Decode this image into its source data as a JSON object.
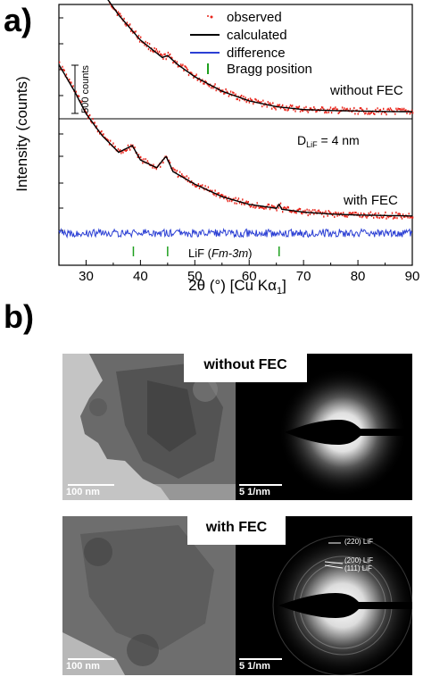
{
  "panel_a": {
    "label": "a)"
  },
  "panel_b": {
    "label": "b)"
  },
  "legend": {
    "observed": "observed",
    "calculated": "calculated",
    "difference": "difference",
    "bragg": "Bragg position"
  },
  "annotations": {
    "scale_bar": "500 counts",
    "without_fec": "without FEC",
    "with_fec": "with FEC",
    "d_prefix": "D",
    "d_sub": "LiF",
    "d_value": " = 4 nm",
    "lif_prefix": "LiF (",
    "lif_space_group": "Fm-3m",
    "lif_suffix": ")"
  },
  "colors": {
    "observed": "#e8261c",
    "calculated": "#000000",
    "difference": "#2b3fd4",
    "bragg": "#1fa01f"
  },
  "chart_data": {
    "type": "line",
    "xlabel": "2θ (°) [Cu Kα1]",
    "ylabel": "Intensity (counts)",
    "xlim": [
      25,
      90
    ],
    "x_ticks": [
      30,
      40,
      50,
      60,
      70,
      80,
      90
    ],
    "x_tick_labels": [
      "30",
      "40",
      "50",
      "60",
      "70",
      "80",
      "90"
    ],
    "scale_bar_counts": 500,
    "series": [
      {
        "name": "without FEC",
        "x": [
          25,
          28,
          30,
          33,
          36,
          40,
          44,
          45,
          47,
          50,
          55,
          60,
          65,
          70,
          75,
          80,
          85,
          90
        ],
        "calculated": [
          2760,
          2420,
          2220,
          1960,
          1720,
          1460,
          1280,
          1300,
          1200,
          1080,
          930,
          830,
          770,
          740,
          730,
          725,
          720,
          718
        ]
      },
      {
        "name": "with FEC",
        "x": [
          25,
          28,
          30,
          33,
          36,
          38.5,
          40,
          43,
          44.7,
          46,
          50,
          55,
          60,
          65,
          65.5,
          66,
          70,
          75,
          80,
          85,
          90
        ],
        "calculated": [
          2150,
          1860,
          1640,
          1410,
          1240,
          1310,
          1160,
          1080,
          1200,
          1040,
          910,
          780,
          700,
          660,
          700,
          650,
          620,
          600,
          590,
          585,
          580
        ]
      }
    ],
    "bragg_positions": {
      "phase": "LiF (Fm-3m)",
      "x": [
        38.7,
        45.0,
        65.5
      ]
    },
    "difference": "flat residual near zero"
  },
  "tem": [
    {
      "title": "without FEC",
      "scalebar_left": "100 nm",
      "scalebar_right": "5 1/nm"
    },
    {
      "title": "with FEC",
      "scalebar_left": "100 nm",
      "scalebar_right": "5 1/nm",
      "rings": [
        "(220) LiF",
        "(200) LiF",
        "(111) LiF"
      ]
    }
  ]
}
